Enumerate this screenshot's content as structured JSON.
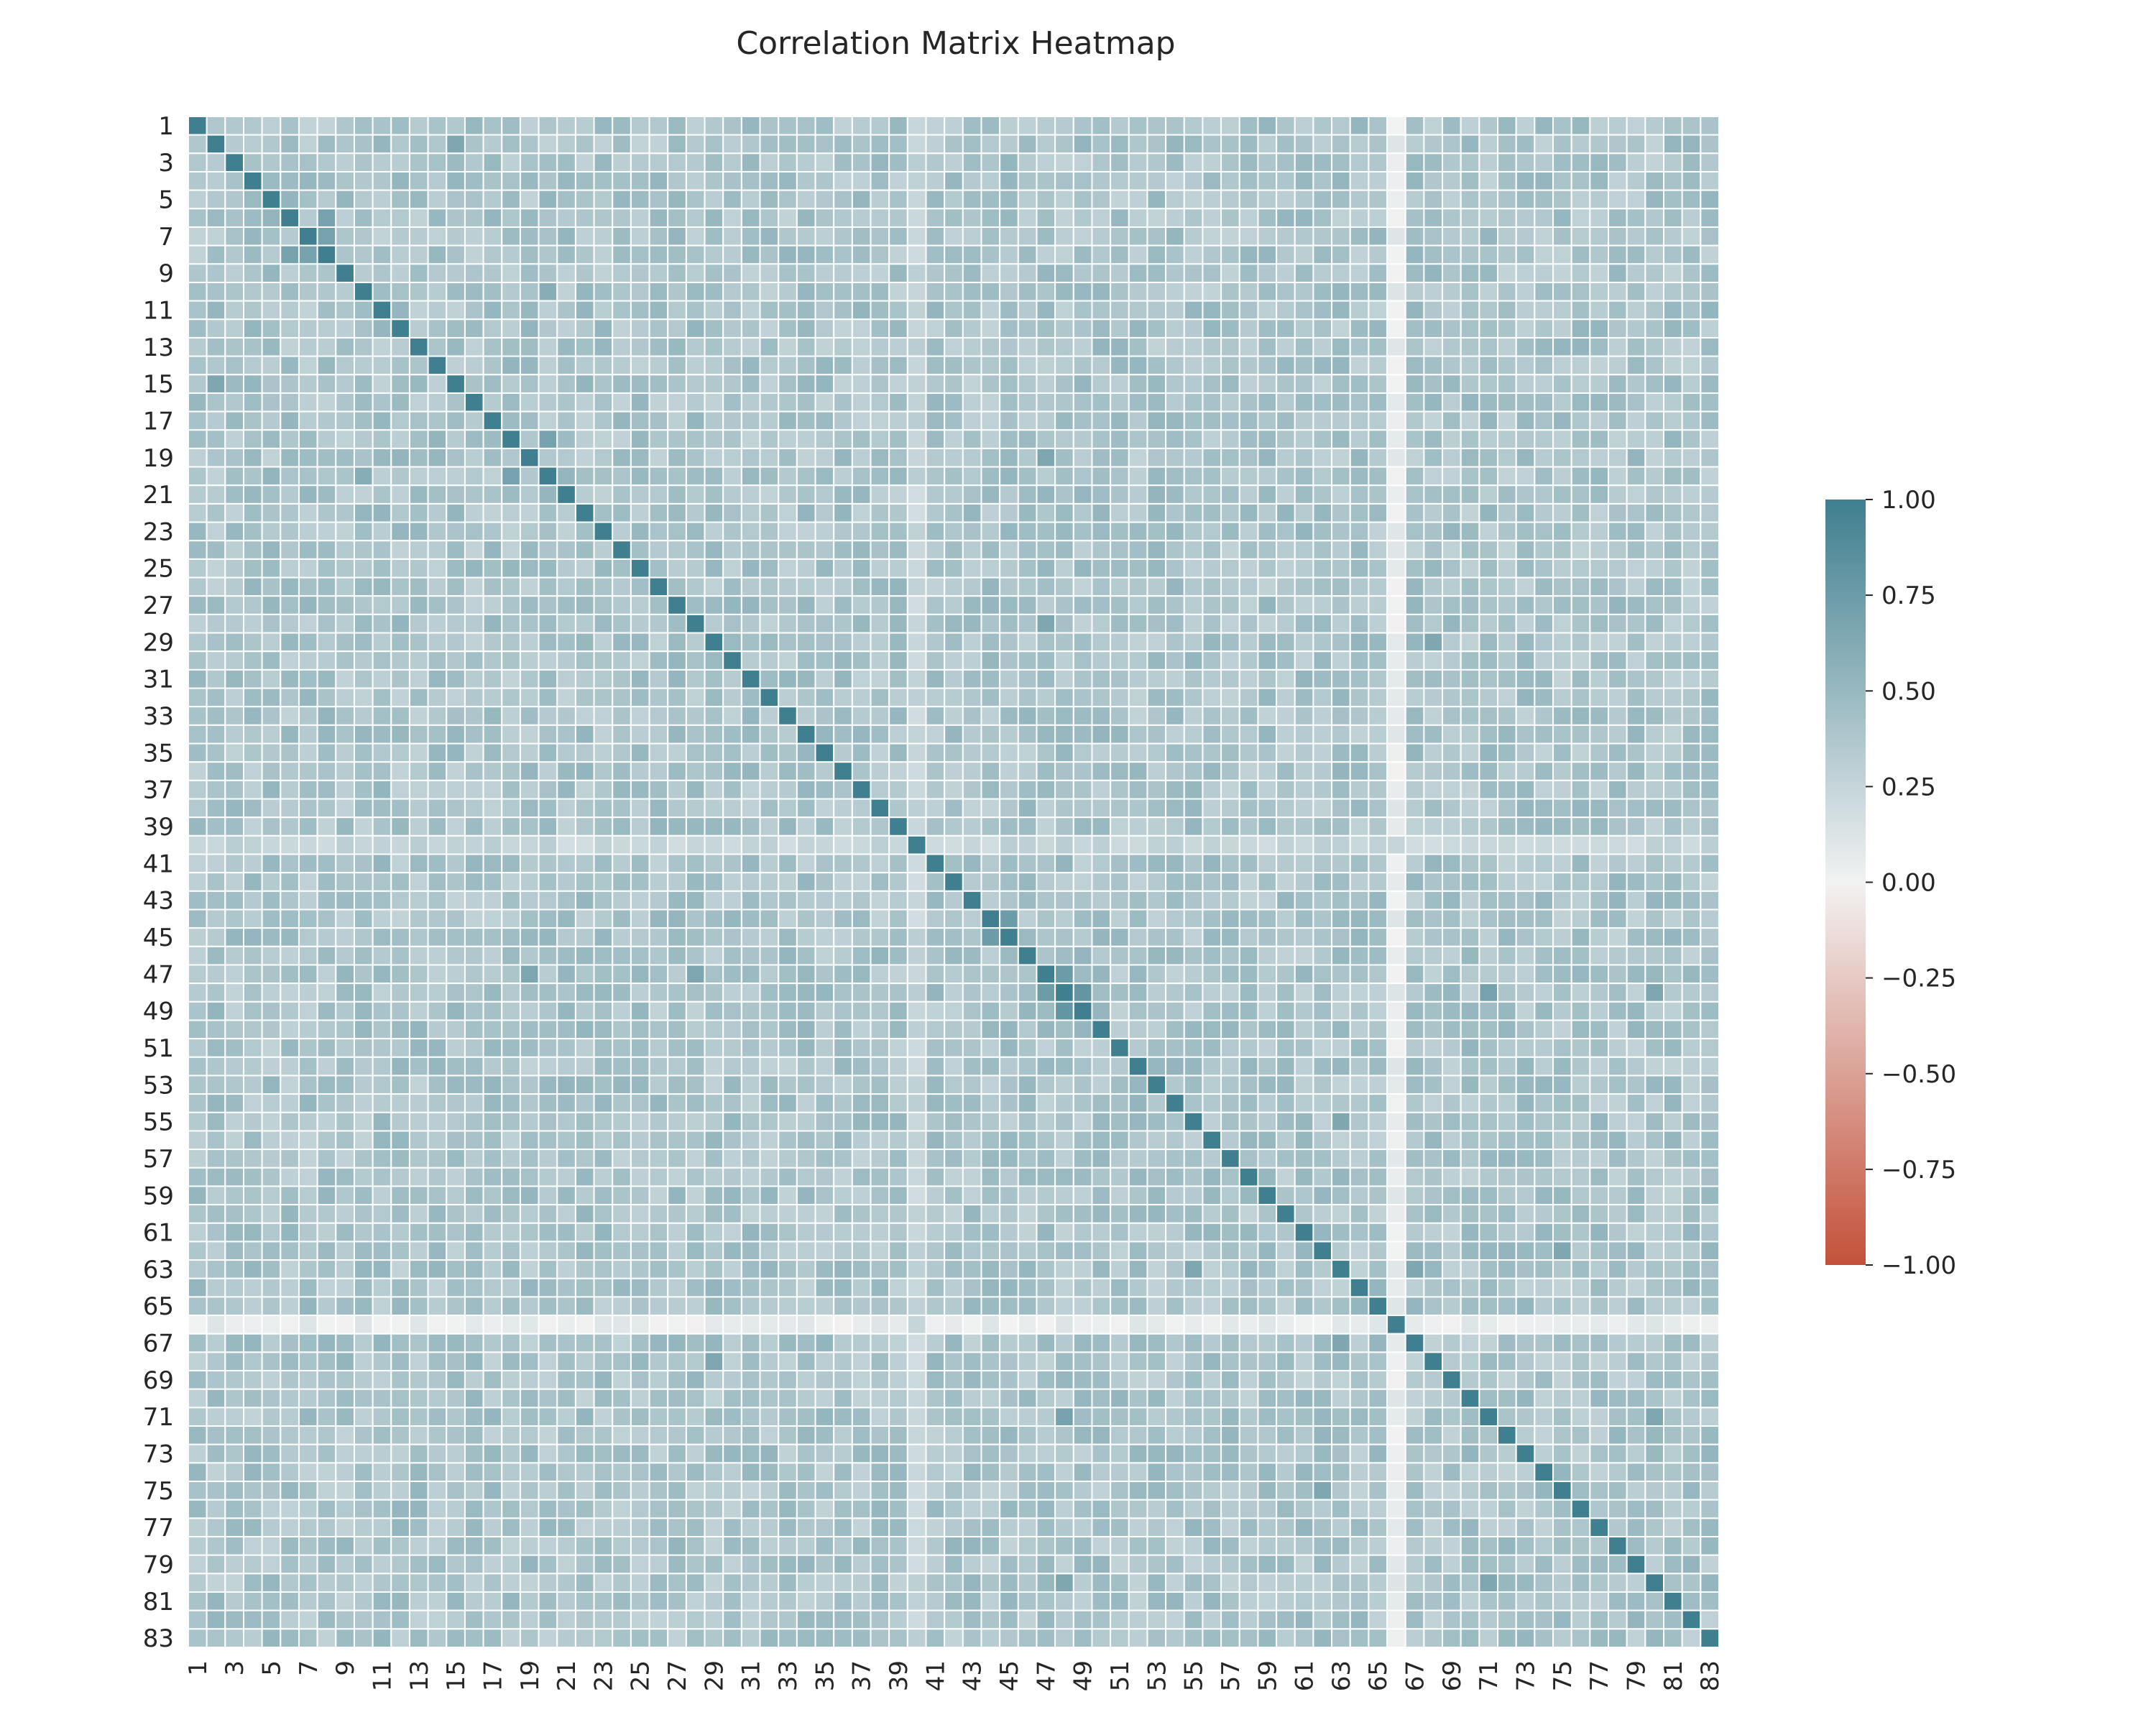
{
  "chart_data": {
    "type": "heatmap",
    "title": "Correlation Matrix Heatmap",
    "xlabel": "",
    "ylabel": "",
    "n": 83,
    "row_labels": [
      "1",
      "2",
      "3",
      "4",
      "5",
      "6",
      "7",
      "8",
      "9",
      "10",
      "11",
      "12",
      "13",
      "14",
      "15",
      "16",
      "17",
      "18",
      "19",
      "20",
      "21",
      "22",
      "23",
      "24",
      "25",
      "26",
      "27",
      "28",
      "29",
      "30",
      "31",
      "32",
      "33",
      "34",
      "35",
      "36",
      "37",
      "38",
      "39",
      "40",
      "41",
      "42",
      "43",
      "44",
      "45",
      "46",
      "47",
      "48",
      "49",
      "50",
      "51",
      "52",
      "53",
      "54",
      "55",
      "56",
      "57",
      "58",
      "59",
      "60",
      "61",
      "62",
      "63",
      "64",
      "65",
      "66",
      "67",
      "68",
      "69",
      "70",
      "71",
      "72",
      "73",
      "74",
      "75",
      "76",
      "77",
      "78",
      "79",
      "80",
      "81",
      "82",
      "83"
    ],
    "col_labels": [
      "1",
      "2",
      "3",
      "4",
      "5",
      "6",
      "7",
      "8",
      "9",
      "10",
      "11",
      "12",
      "13",
      "14",
      "15",
      "16",
      "17",
      "18",
      "19",
      "20",
      "21",
      "22",
      "23",
      "24",
      "25",
      "26",
      "27",
      "28",
      "29",
      "30",
      "31",
      "32",
      "33",
      "34",
      "35",
      "36",
      "37",
      "38",
      "39",
      "40",
      "41",
      "42",
      "43",
      "44",
      "45",
      "46",
      "47",
      "48",
      "49",
      "50",
      "51",
      "52",
      "53",
      "54",
      "55",
      "56",
      "57",
      "58",
      "59",
      "60",
      "61",
      "62",
      "63",
      "64",
      "65",
      "66",
      "67",
      "68",
      "69",
      "70",
      "71",
      "72",
      "73",
      "74",
      "75",
      "76",
      "77",
      "78",
      "79",
      "80",
      "81",
      "82",
      "83"
    ],
    "tick_labels_shown": [
      "1",
      "3",
      "5",
      "7",
      "9",
      "11",
      "13",
      "15",
      "17",
      "19",
      "21",
      "23",
      "25",
      "27",
      "29",
      "31",
      "33",
      "35",
      "37",
      "39",
      "41",
      "43",
      "45",
      "47",
      "49",
      "51",
      "53",
      "55",
      "57",
      "59",
      "61",
      "63",
      "65",
      "67",
      "69",
      "71",
      "73",
      "75",
      "77",
      "79",
      "81",
      "83"
    ],
    "value_range": [
      -1.0,
      1.0
    ],
    "diagonal_value": 1.0,
    "typical_off_diagonal": 0.4,
    "weak_rows": [
      {
        "index": 66,
        "typical_value": 0.05
      },
      {
        "index": 40,
        "typical_value": 0.25
      }
    ],
    "notable_correlations": [
      {
        "row": 2,
        "col": 15,
        "value": 0.65
      },
      {
        "row": 6,
        "col": 8,
        "value": 0.7
      },
      {
        "row": 7,
        "col": 8,
        "value": 0.7
      },
      {
        "row": 18,
        "col": 20,
        "value": 0.7
      },
      {
        "row": 10,
        "col": 20,
        "value": 0.6
      },
      {
        "row": 19,
        "col": 47,
        "value": 0.65
      },
      {
        "row": 28,
        "col": 47,
        "value": 0.65
      },
      {
        "row": 29,
        "col": 68,
        "value": 0.65
      },
      {
        "row": 44,
        "col": 45,
        "value": 0.75
      },
      {
        "row": 48,
        "col": 49,
        "value": 0.8
      },
      {
        "row": 47,
        "col": 48,
        "value": 0.75
      },
      {
        "row": 48,
        "col": 71,
        "value": 0.7
      },
      {
        "row": 48,
        "col": 80,
        "value": 0.65
      },
      {
        "row": 55,
        "col": 63,
        "value": 0.65
      },
      {
        "row": 63,
        "col": 67,
        "value": 0.65
      },
      {
        "row": 62,
        "col": 75,
        "value": 0.65
      },
      {
        "row": 71,
        "col": 80,
        "value": 0.65
      }
    ],
    "colorbar": {
      "ticks": [
        1.0,
        0.75,
        0.5,
        0.25,
        0.0,
        -0.25,
        -0.5,
        -0.75,
        -1.0
      ],
      "tick_labels": [
        "1.00",
        "0.75",
        "0.50",
        "0.25",
        "0.00",
        "−0.25",
        "−0.50",
        "−0.75",
        "−1.00"
      ],
      "colors": {
        "positive": "#3f7f8f",
        "neutral": "#f2f2f2",
        "negative": "#c4513a"
      }
    },
    "grid_line_color": "#ffffff"
  }
}
